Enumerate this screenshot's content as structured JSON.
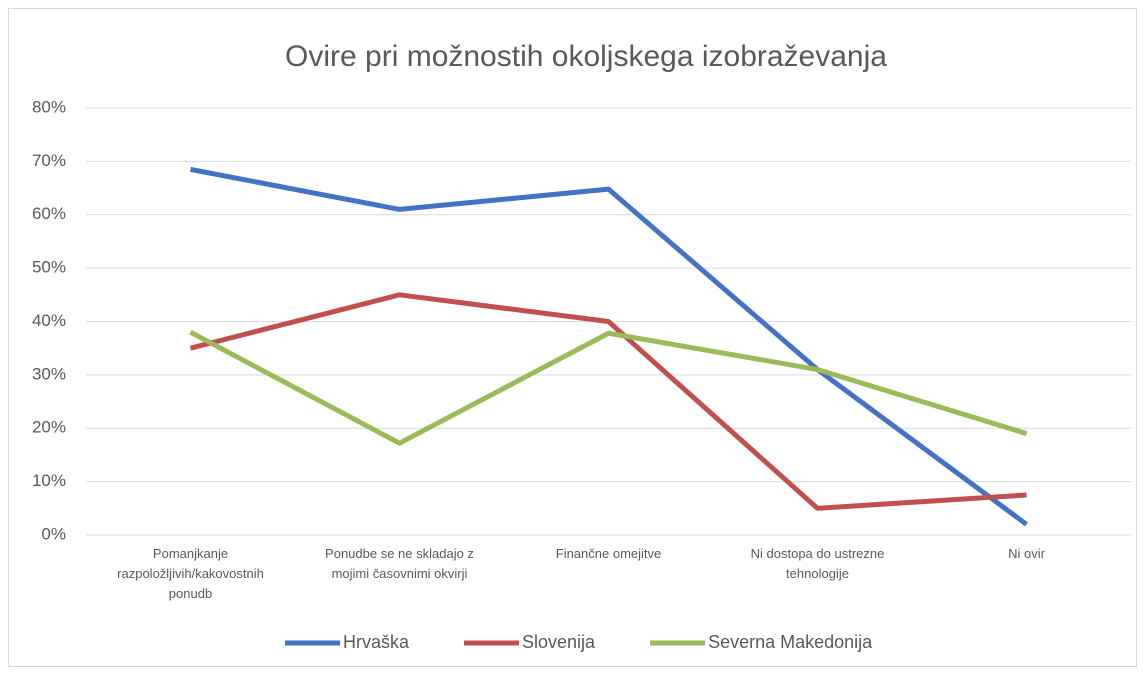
{
  "chart_data": {
    "type": "line",
    "title": "Ovire pri možnostih okoljskega izobraževanja",
    "categories": [
      "Pomanjkanje razpoložljivih/kakovostnih ponudb",
      "Ponudbe se ne skladajo z mojimi časovnimi okvirji",
      "Finančne omejitve",
      "Ni dostopa do ustrezne tehnologije",
      "Ni ovir"
    ],
    "series": [
      {
        "name": "Hrvaška",
        "color": "#4472c4",
        "values": [
          68.5,
          61,
          64.8,
          31,
          2
        ]
      },
      {
        "name": "Slovenija",
        "color": "#c0504d",
        "values": [
          35,
          45,
          40,
          5,
          7.5
        ]
      },
      {
        "name": "Severna Makedonija",
        "color": "#9bbb59",
        "values": [
          38,
          17.2,
          37.8,
          31,
          19
        ]
      }
    ],
    "ylim": [
      0,
      80
    ],
    "yticks": [
      {
        "value": 0,
        "label": "0%"
      },
      {
        "value": 10,
        "label": "10%"
      },
      {
        "value": 20,
        "label": "20%"
      },
      {
        "value": 30,
        "label": "30%"
      },
      {
        "value": 40,
        "label": "40%"
      },
      {
        "value": 50,
        "label": "50%"
      },
      {
        "value": 60,
        "label": "60%"
      },
      {
        "value": 70,
        "label": "70%"
      },
      {
        "value": 80,
        "label": "80%"
      }
    ],
    "grid": true,
    "legend": "bottom"
  }
}
